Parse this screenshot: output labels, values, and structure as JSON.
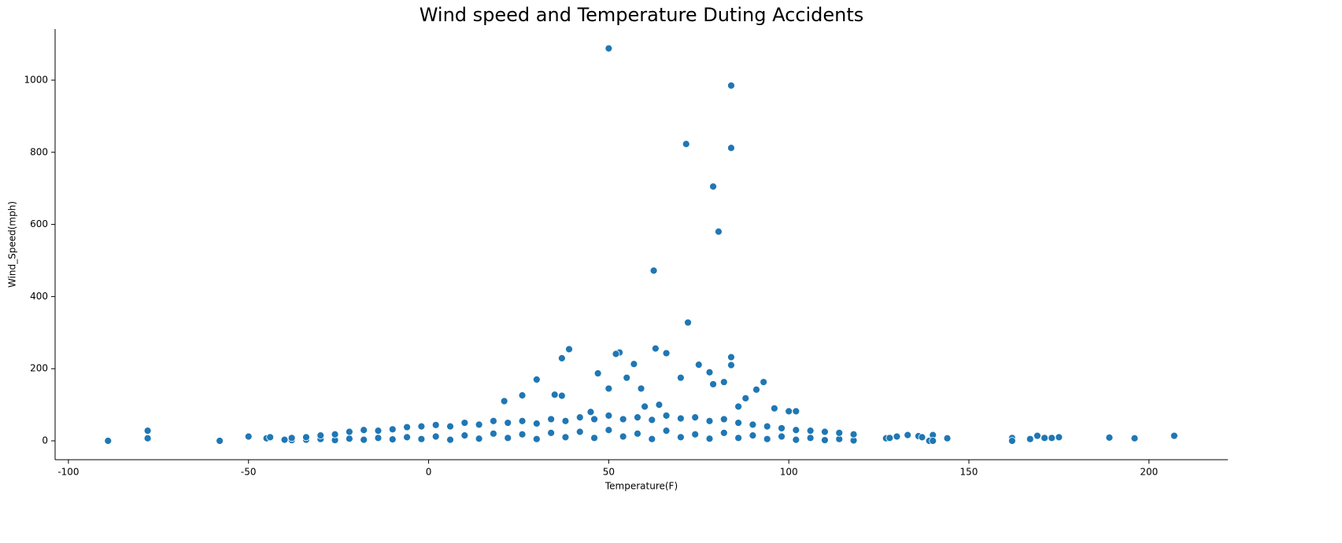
{
  "chart_data": {
    "type": "scatter",
    "title": "Wind speed and Temperature Duting Accidents",
    "x_label": "Temperature(F)",
    "y_label": "Wind_Speed(mph)",
    "color": "#1f77b4",
    "xlim": [
      -103.7,
      221.9
    ],
    "ylim": [
      -52.3,
      1141.6
    ],
    "xticks": [
      -100,
      -50,
      0,
      50,
      100,
      150,
      200
    ],
    "yticks": [
      0,
      200,
      400,
      600,
      800,
      1000
    ],
    "x": [
      50,
      84,
      71.5,
      84,
      79,
      80.5,
      62.5,
      72,
      63,
      39,
      53,
      52,
      66,
      37,
      84,
      84,
      57,
      75,
      30,
      78,
      47,
      93,
      82,
      70,
      55,
      79,
      91,
      26,
      21,
      35,
      37,
      50,
      59,
      86,
      64,
      88,
      96,
      100,
      102,
      45,
      60,
      -89,
      -78,
      -78,
      -58,
      -50,
      -45,
      -44,
      -40,
      127,
      128,
      130,
      133,
      136,
      137,
      139,
      140,
      140,
      144,
      162,
      162,
      167,
      169,
      171,
      173,
      175,
      189,
      196,
      207,
      -38,
      -38,
      -34,
      -34,
      -30,
      -30,
      -26,
      -26,
      -22,
      -22,
      -18,
      -18,
      -14,
      -14,
      -10,
      -10,
      -6,
      -6,
      -2,
      -2,
      2,
      2,
      6,
      6,
      10,
      10,
      14,
      14,
      18,
      18,
      22,
      22,
      26,
      26,
      30,
      30,
      34,
      34,
      38,
      38,
      42,
      42,
      46,
      46,
      50,
      50,
      54,
      54,
      58,
      58,
      62,
      62,
      66,
      66,
      70,
      70,
      74,
      74,
      78,
      78,
      82,
      82,
      86,
      86,
      90,
      90,
      94,
      94,
      98,
      98,
      102,
      102,
      106,
      106,
      110,
      110,
      114,
      114,
      118,
      118
    ],
    "values": [
      1088,
      985,
      823,
      812,
      705,
      580,
      472,
      328,
      256,
      254,
      245,
      241,
      243,
      229,
      232,
      210,
      213,
      211,
      170,
      190,
      187,
      163,
      163,
      175,
      175,
      157,
      142,
      126,
      110,
      128,
      125,
      145,
      145,
      95,
      100,
      118,
      90,
      82,
      82,
      80,
      95,
      0,
      28,
      7,
      0,
      12,
      7,
      10,
      3,
      7,
      8,
      12,
      16,
      13,
      10,
      0,
      16,
      0,
      7,
      8,
      0,
      5,
      14,
      8,
      8,
      10,
      9,
      7,
      14,
      2,
      8,
      3,
      10,
      5,
      15,
      2,
      18,
      6,
      25,
      3,
      30,
      8,
      28,
      4,
      32,
      10,
      38,
      5,
      40,
      12,
      44,
      3,
      40,
      15,
      50,
      6,
      45,
      20,
      55,
      8,
      50,
      18,
      55,
      5,
      48,
      22,
      60,
      10,
      55,
      25,
      65,
      8,
      60,
      30,
      70,
      12,
      60,
      20,
      65,
      5,
      58,
      28,
      70,
      10,
      62,
      18,
      65,
      6,
      55,
      22,
      60,
      8,
      50,
      15,
      45,
      5,
      40,
      12,
      35,
      3,
      30,
      8,
      28,
      2,
      25,
      5,
      22,
      1,
      18
    ]
  }
}
